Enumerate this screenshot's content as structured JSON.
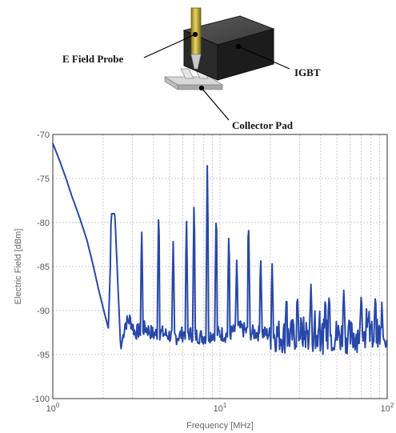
{
  "figure": {
    "callouts": {
      "e_field_probe": "E Field Probe",
      "igbt": "IGBT",
      "collector_pad": "Collector Pad"
    }
  },
  "chart_data": {
    "type": "line",
    "title": "",
    "xlabel": "Frequency [MHz]",
    "ylabel": "Electric Field [dBm]",
    "x_scale": "log",
    "xlim": [
      1,
      100
    ],
    "ylim": [
      -100,
      -70
    ],
    "grid": true,
    "x_ticks": [
      {
        "value": 1,
        "base": "10",
        "exp": "0"
      },
      {
        "value": 10,
        "base": "10",
        "exp": "1"
      },
      {
        "value": 100,
        "base": "10",
        "exp": "2"
      }
    ],
    "y_ticks": [
      -70,
      -75,
      -80,
      -85,
      -90,
      -95,
      -100
    ],
    "series": [
      {
        "color": "#2848a8",
        "x": [
          1.0,
          1.1,
          1.2,
          1.3,
          1.45,
          1.6,
          1.75,
          1.9,
          2.05,
          2.15,
          2.2,
          2.25,
          2.35,
          2.45,
          2.55,
          2.7,
          2.9,
          3.1,
          3.3,
          3.6,
          4.0,
          4.4,
          4.9,
          5.5,
          6.2,
          7.0,
          8.0,
          9.5,
          11,
          13,
          15,
          18,
          22,
          26,
          30,
          35,
          40,
          50,
          60,
          70,
          80,
          90,
          100
        ],
        "y": [
          -71,
          -73,
          -75,
          -77,
          -79.5,
          -82,
          -85,
          -88,
          -90.5,
          -92,
          -86,
          -79,
          -79,
          -87,
          -94.5,
          -91.5,
          -91,
          -92.5,
          -92.3,
          -92,
          -92.7,
          -92.5,
          -92.8,
          -93,
          -92.5,
          -92.8,
          -93,
          -92.5,
          -92.8,
          -92,
          -92.5,
          -92.6,
          -92.8,
          -93,
          -92.5,
          -92.8,
          -93,
          -92.8,
          -93,
          -92.6,
          -92.8,
          -93,
          -92.7
        ],
        "peaks": [
          {
            "x": 2.25,
            "y": -79
          },
          {
            "x": 3.4,
            "y": -80.5
          },
          {
            "x": 4.3,
            "y": -77.5
          },
          {
            "x": 5.25,
            "y": -82
          },
          {
            "x": 6.3,
            "y": -79
          },
          {
            "x": 7.0,
            "y": -76.5
          },
          {
            "x": 8.4,
            "y": -73
          },
          {
            "x": 9.5,
            "y": -77.5
          },
          {
            "x": 11.3,
            "y": -80.5
          },
          {
            "x": 12.6,
            "y": -84
          },
          {
            "x": 14.8,
            "y": -78.5
          },
          {
            "x": 17.5,
            "y": -83.5
          },
          {
            "x": 20.5,
            "y": -84.5
          },
          {
            "x": 25,
            "y": -88
          },
          {
            "x": 29,
            "y": -88
          },
          {
            "x": 35,
            "y": -87
          },
          {
            "x": 45,
            "y": -88
          },
          {
            "x": 55,
            "y": -87.5
          },
          {
            "x": 70,
            "y": -88
          },
          {
            "x": 85,
            "y": -88
          }
        ]
      }
    ]
  }
}
